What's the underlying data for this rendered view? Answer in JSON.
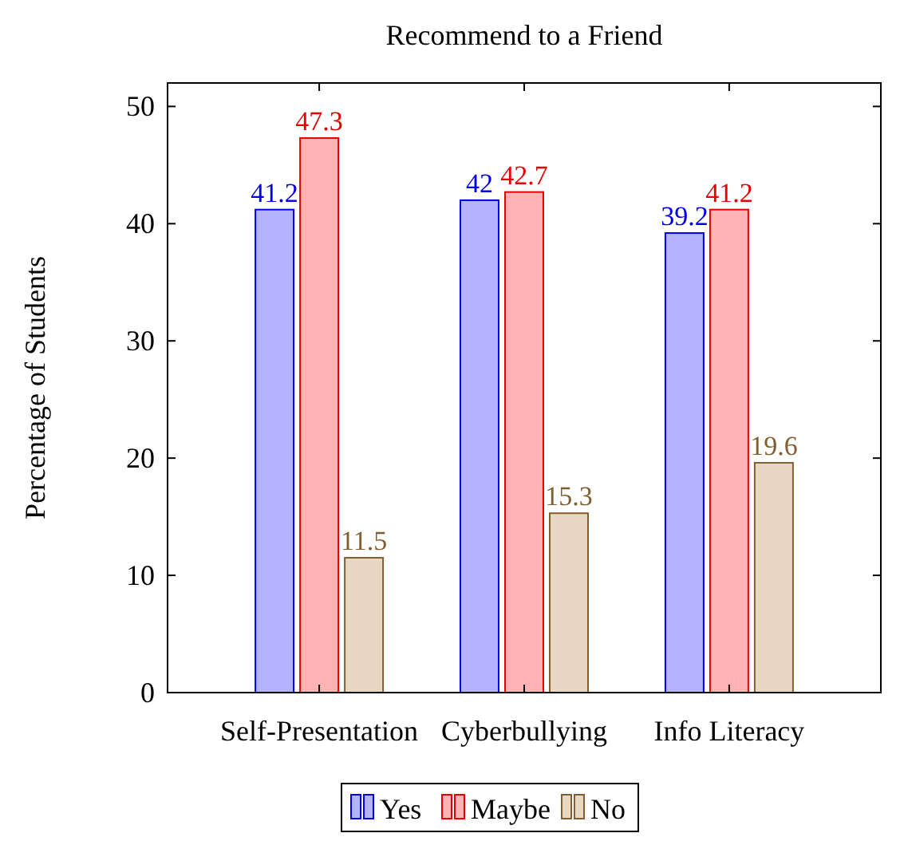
{
  "chart_data": {
    "type": "bar",
    "title": "Recommend to a Friend",
    "ylabel": "Percentage of Students",
    "categories": [
      "Self-Presentation",
      "Cyberbullying",
      "Info Literacy"
    ],
    "series": [
      {
        "name": "Yes",
        "color": "#b3b3ff",
        "values": [
          41.2,
          42,
          39.2
        ]
      },
      {
        "name": "Maybe",
        "color": "#ffb3b3",
        "values": [
          47.3,
          42.7,
          41.2
        ]
      },
      {
        "name": "No",
        "color": "#e8d8c3",
        "values": [
          11.5,
          15.3,
          19.6
        ]
      }
    ],
    "ylim": [
      0,
      52
    ],
    "yticks": [
      0,
      10,
      20,
      30,
      40,
      50
    ],
    "data_labels": true,
    "legend": "bottom",
    "grid": false
  }
}
